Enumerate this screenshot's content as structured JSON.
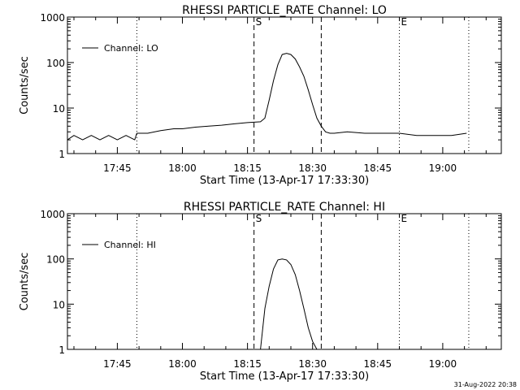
{
  "chart_data": [
    {
      "type": "line",
      "title": "RHESSI PARTICLE_RATE Channel: LO",
      "xlabel": "Start Time (13-Apr-17 17:33:30)",
      "ylabel": "Counts/sec",
      "yscale": "log",
      "ylim": [
        1,
        1000
      ],
      "xlim": [
        "17:33:30",
        "19:13:30"
      ],
      "x_ticks": [
        "17:45",
        "18:00",
        "18:15",
        "18:30",
        "18:45",
        "19:00"
      ],
      "y_ticks": [
        "1",
        "10",
        "100",
        "1000"
      ],
      "legend": "top-left",
      "series": [
        {
          "name": "Channel: LO",
          "color": "#000000",
          "x": [
            "17:33:30",
            "17:35:00",
            "17:37:00",
            "17:39:00",
            "17:41:00",
            "17:43:00",
            "17:45:00",
            "17:47:00",
            "17:49:00",
            "17:49:30",
            "17:52:00",
            "17:55:00",
            "17:58:00",
            "18:00:00",
            "18:03:00",
            "18:06:00",
            "18:09:00",
            "18:12:00",
            "18:15:00",
            "18:18:00",
            "18:19:00",
            "18:20:00",
            "18:21:00",
            "18:22:00",
            "18:23:00",
            "18:24:00",
            "18:25:00",
            "18:26:00",
            "18:27:00",
            "18:28:00",
            "18:29:00",
            "18:30:00",
            "18:31:00",
            "18:32:00",
            "18:33:00",
            "18:34:00",
            "18:35:00",
            "18:38:00",
            "18:42:00",
            "18:46:00",
            "18:50:00",
            "18:54:00",
            "18:58:00",
            "19:02:00",
            "19:05:30"
          ],
          "y": [
            2,
            2.5,
            2,
            2.5,
            2,
            2.5,
            2,
            2.5,
            2,
            2.8,
            2.8,
            3.2,
            3.5,
            3.5,
            3.8,
            4,
            4.2,
            4.5,
            4.8,
            5,
            6,
            15,
            40,
            90,
            150,
            160,
            150,
            120,
            80,
            50,
            25,
            12,
            6,
            4,
            3,
            2.8,
            2.8,
            3,
            2.8,
            2.8,
            2.8,
            2.5,
            2.5,
            2.5,
            2.8
          ]
        }
      ],
      "annotations": [
        {
          "text": "S",
          "x": "18:16:30",
          "line": "dashed"
        },
        {
          "text": "",
          "x": "18:32:00",
          "line": "dashed"
        },
        {
          "text": "E",
          "x": "18:50:00",
          "line": "dotted"
        },
        {
          "text": "",
          "x": "17:49:30",
          "line": "dotted"
        },
        {
          "text": "",
          "x": "19:06:00",
          "line": "dotted"
        }
      ]
    },
    {
      "type": "line",
      "title": "RHESSI PARTICLE_RATE Channel: HI",
      "xlabel": "Start Time (13-Apr-17 17:33:30)",
      "ylabel": "Counts/sec",
      "yscale": "log",
      "ylim": [
        1,
        1000
      ],
      "xlim": [
        "17:33:30",
        "19:13:30"
      ],
      "x_ticks": [
        "17:45",
        "18:00",
        "18:15",
        "18:30",
        "18:45",
        "19:00"
      ],
      "y_ticks": [
        "1",
        "10",
        "100",
        "1000"
      ],
      "legend": "top-left",
      "series": [
        {
          "name": "Channel: HI",
          "color": "#000000",
          "x": [
            "18:18:00",
            "18:19:00",
            "18:20:00",
            "18:21:00",
            "18:22:00",
            "18:23:00",
            "18:24:00",
            "18:25:00",
            "18:26:00",
            "18:27:00",
            "18:28:00",
            "18:29:00",
            "18:30:00",
            "18:31:00"
          ],
          "y": [
            1,
            8,
            25,
            60,
            95,
            100,
            95,
            75,
            45,
            20,
            8,
            3,
            1.5,
            1
          ]
        }
      ],
      "annotations": [
        {
          "text": "S",
          "x": "18:16:30",
          "line": "dashed"
        },
        {
          "text": "",
          "x": "18:32:00",
          "line": "dashed"
        },
        {
          "text": "E",
          "x": "18:50:00",
          "line": "dotted"
        },
        {
          "text": "",
          "x": "17:49:30",
          "line": "dotted"
        },
        {
          "text": "",
          "x": "19:06:00",
          "line": "dotted"
        }
      ]
    }
  ],
  "footer": {
    "timestamp": "31-Aug-2022 20:38"
  }
}
